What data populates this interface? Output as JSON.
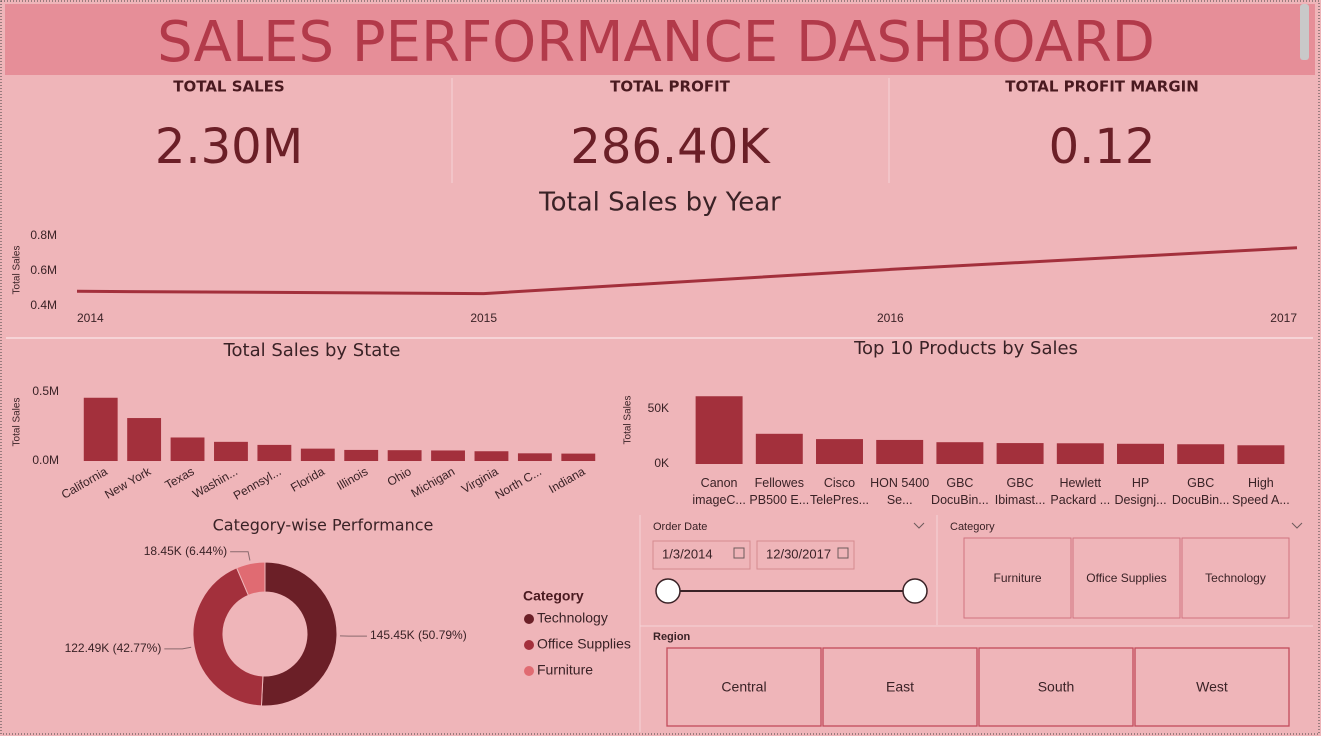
{
  "header": {
    "title": "SALES PERFORMANCE DASHBOARD"
  },
  "kpis": [
    {
      "label": "TOTAL SALES",
      "value": "2.30M"
    },
    {
      "label": "TOTAL PROFIT",
      "value": "286.40K"
    },
    {
      "label": "TOTAL PROFIT MARGIN",
      "value": "0.12"
    }
  ],
  "chart_data": [
    {
      "type": "line",
      "title": "Total Sales by Year",
      "y_label": "Total Sales",
      "categories": [
        "2014",
        "2015",
        "2016",
        "2017"
      ],
      "values": [
        484000,
        471000,
        609000,
        733000
      ],
      "color": "#a3303c",
      "ylim": [
        400000,
        800000
      ],
      "yticks": [
        {
          "value": 400000,
          "label": "0.4M"
        },
        {
          "value": 600000,
          "label": "0.6M"
        },
        {
          "value": 800000,
          "label": "0.8M"
        }
      ]
    },
    {
      "type": "bar",
      "title": "Total Sales by State",
      "y_label": "Total Sales",
      "categories": [
        "California",
        "New York",
        "Texas",
        "Washin...",
        "Pennsyl...",
        "Florida",
        "Illinois",
        "Ohio",
        "Michigan",
        "Virginia",
        "North C...",
        "Indiana"
      ],
      "values": [
        457688,
        310876,
        170188,
        138641,
        116512,
        89474,
        80166,
        78258,
        76270,
        70637,
        55603,
        53555
      ],
      "color": "#a3303c",
      "ylim": [
        0,
        550000
      ],
      "yticks": [
        {
          "value": 0,
          "label": "0.0M"
        },
        {
          "value": 500000,
          "label": "0.5M"
        }
      ]
    },
    {
      "type": "bar",
      "title": "Top 10 Products by Sales",
      "y_label": "Total Sales",
      "categories": [
        "Canon imageC...",
        "Fellowes PB500 E...",
        "Cisco TelePres...",
        "HON 5400 Se...",
        "GBC DocuBin...",
        "GBC Ibimast...",
        "Hewlett Packard ...",
        "HP Designj...",
        "GBC DocuBin...",
        "High Speed A..."
      ],
      "values": [
        61600,
        27453,
        22638,
        21870,
        19823,
        19024,
        18840,
        18374,
        17965,
        17030
      ],
      "color": "#a3303c",
      "ylim": [
        0,
        70000
      ],
      "yticks": [
        {
          "value": 0,
          "label": "0K"
        },
        {
          "value": 50000,
          "label": "50K"
        }
      ]
    },
    {
      "type": "pie",
      "title": "Category-wise Performance",
      "legend_title": "Category",
      "donut": true,
      "categories": [
        "Technology",
        "Office Supplies",
        "Furniture"
      ],
      "values": [
        145450,
        122490,
        18450
      ],
      "value_labels": [
        "145.45K (50.79%)",
        "122.49K (42.77%)",
        "18.45K (6.44%)"
      ],
      "colors": [
        "#6b1f27",
        "#a3303c",
        "#e06b72"
      ]
    }
  ],
  "slicers": {
    "order_date": {
      "label": "Order Date",
      "start": "1/3/2014",
      "end": "12/30/2017"
    },
    "category": {
      "label": "Category",
      "items": [
        "Furniture",
        "Office Supplies",
        "Technology"
      ]
    },
    "region": {
      "label": "Region",
      "items": [
        "Central",
        "East",
        "South",
        "West"
      ]
    }
  }
}
